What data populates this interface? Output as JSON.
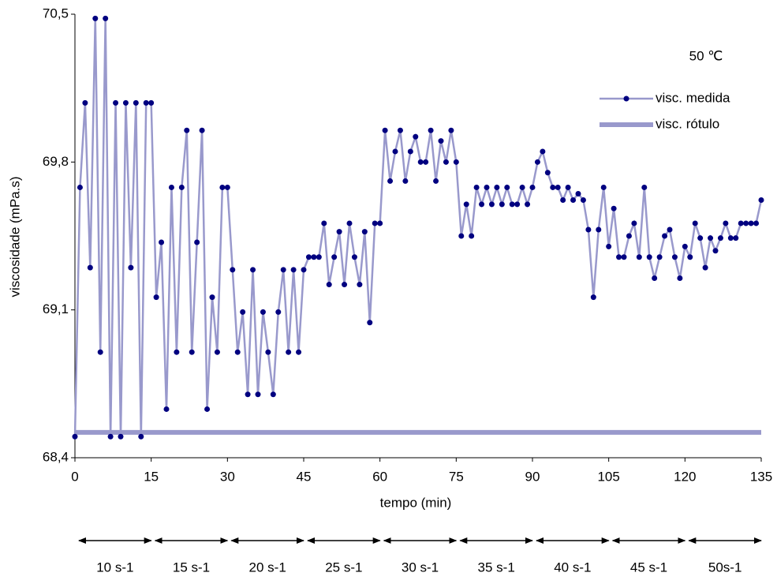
{
  "chart_data": {
    "type": "line",
    "annotation": "50 ℃",
    "xlabel": "tempo (min)",
    "ylabel": "viscosidade (mPa.s)",
    "xlim": [
      0,
      135
    ],
    "xticks": [
      0,
      15,
      30,
      45,
      60,
      75,
      90,
      105,
      120,
      135
    ],
    "ylim": [
      68.4,
      70.5
    ],
    "yticks": [
      {
        "value": 68.4,
        "label": "68,4"
      },
      {
        "value": 69.1,
        "label": "69,1"
      },
      {
        "value": 69.8,
        "label": "69,8"
      },
      {
        "value": 70.5,
        "label": "70,5"
      }
    ],
    "legend": "upper right",
    "x": [
      0,
      1,
      2,
      3,
      4,
      5,
      6,
      7,
      8,
      9,
      10,
      11,
      12,
      13,
      14,
      15,
      16,
      17,
      18,
      19,
      20,
      21,
      22,
      23,
      24,
      25,
      26,
      27,
      28,
      29,
      30,
      31,
      32,
      33,
      34,
      35,
      36,
      37,
      38,
      39,
      40,
      41,
      42,
      43,
      44,
      45,
      46,
      47,
      48,
      49,
      50,
      51,
      52,
      53,
      54,
      55,
      56,
      57,
      58,
      59,
      60,
      61,
      62,
      63,
      64,
      65,
      66,
      67,
      68,
      69,
      70,
      71,
      72,
      73,
      74,
      75,
      76,
      77,
      78,
      79,
      80,
      81,
      82,
      83,
      84,
      85,
      86,
      87,
      88,
      89,
      90,
      91,
      92,
      93,
      94,
      95,
      96,
      97,
      98,
      99,
      100,
      101,
      102,
      103,
      104,
      105,
      106,
      107,
      108,
      109,
      110,
      111,
      112,
      113,
      114,
      115,
      116,
      117,
      118,
      119,
      120,
      121,
      122,
      123,
      124,
      125,
      126,
      127,
      128,
      129,
      130,
      131,
      132,
      133,
      134,
      135
    ],
    "series": [
      {
        "name": "visc. medida",
        "color": "#9999cc",
        "marker_color": "#000080",
        "values": [
          68.5,
          69.68,
          70.08,
          69.3,
          70.48,
          68.9,
          70.48,
          68.5,
          70.08,
          68.5,
          70.08,
          69.3,
          70.08,
          68.5,
          70.08,
          70.08,
          69.16,
          69.42,
          68.63,
          69.68,
          68.9,
          69.68,
          69.95,
          68.9,
          69.42,
          69.95,
          68.63,
          69.16,
          68.9,
          69.68,
          69.68,
          69.29,
          68.9,
          69.09,
          68.7,
          69.29,
          68.7,
          69.09,
          68.9,
          68.7,
          69.09,
          69.29,
          68.9,
          69.29,
          68.9,
          69.29,
          69.35,
          69.35,
          69.35,
          69.51,
          69.22,
          69.35,
          69.47,
          69.22,
          69.51,
          69.35,
          69.22,
          69.47,
          69.04,
          69.51,
          69.51,
          69.95,
          69.71,
          69.85,
          69.95,
          69.71,
          69.85,
          69.92,
          69.8,
          69.8,
          69.95,
          69.71,
          69.9,
          69.8,
          69.95,
          69.8,
          69.45,
          69.6,
          69.45,
          69.68,
          69.6,
          69.68,
          69.6,
          69.68,
          69.6,
          69.68,
          69.6,
          69.6,
          69.68,
          69.6,
          69.68,
          69.8,
          69.85,
          69.75,
          69.68,
          69.68,
          69.62,
          69.68,
          69.62,
          69.65,
          69.62,
          69.48,
          69.16,
          69.48,
          69.68,
          69.4,
          69.58,
          69.35,
          69.35,
          69.45,
          69.51,
          69.35,
          69.68,
          69.35,
          69.25,
          69.35,
          69.45,
          69.48,
          69.35,
          69.25,
          69.4,
          69.35,
          69.51,
          69.44,
          69.3,
          69.44,
          69.38,
          69.44,
          69.51,
          69.44,
          69.44,
          69.51,
          69.51,
          69.51,
          69.51,
          69.62
        ]
      },
      {
        "name": "visc. rótulo",
        "color": "#9999cc",
        "values": [
          68.52,
          68.52,
          68.52,
          68.52,
          68.52,
          68.52,
          68.52,
          68.52,
          68.52,
          68.52,
          68.52,
          68.52,
          68.52,
          68.52,
          68.52,
          68.52,
          68.52,
          68.52,
          68.52,
          68.52,
          68.52,
          68.52,
          68.52,
          68.52,
          68.52,
          68.52,
          68.52,
          68.52,
          68.52,
          68.52,
          68.52,
          68.52,
          68.52,
          68.52,
          68.52,
          68.52,
          68.52,
          68.52,
          68.52,
          68.52,
          68.52,
          68.52,
          68.52,
          68.52,
          68.52,
          68.52,
          68.52,
          68.52,
          68.52,
          68.52,
          68.52,
          68.52,
          68.52,
          68.52,
          68.52,
          68.52,
          68.52,
          68.52,
          68.52,
          68.52,
          68.52,
          68.52,
          68.52,
          68.52,
          68.52,
          68.52,
          68.52,
          68.52,
          68.52,
          68.52,
          68.52,
          68.52,
          68.52,
          68.52,
          68.52,
          68.52,
          68.52,
          68.52,
          68.52,
          68.52,
          68.52,
          68.52,
          68.52,
          68.52,
          68.52,
          68.52,
          68.52,
          68.52,
          68.52,
          68.52,
          68.52,
          68.52,
          68.52,
          68.52,
          68.52,
          68.52,
          68.52,
          68.52,
          68.52,
          68.52,
          68.52,
          68.52,
          68.52,
          68.52,
          68.52,
          68.52,
          68.52,
          68.52,
          68.52,
          68.52,
          68.52,
          68.52,
          68.52,
          68.52,
          68.52,
          68.52,
          68.52,
          68.52,
          68.52,
          68.52,
          68.52,
          68.52,
          68.52,
          68.52,
          68.52,
          68.52,
          68.52,
          68.52,
          68.52,
          68.52,
          68.52,
          68.52,
          68.52,
          68.52,
          68.52,
          68.52
        ]
      }
    ],
    "shear_rates": [
      {
        "label": "10 s-1",
        "start": 0,
        "end": 15
      },
      {
        "label": "15 s-1",
        "start": 15,
        "end": 30
      },
      {
        "label": "20 s-1",
        "start": 30,
        "end": 45
      },
      {
        "label": "25 s-1",
        "start": 45,
        "end": 60
      },
      {
        "label": "30 s-1",
        "start": 60,
        "end": 75
      },
      {
        "label": "35 s-1",
        "start": 75,
        "end": 90
      },
      {
        "label": "40 s-1",
        "start": 90,
        "end": 105
      },
      {
        "label": "45 s-1",
        "start": 105,
        "end": 120
      },
      {
        "label": "50s-1",
        "start": 120,
        "end": 135
      }
    ]
  }
}
